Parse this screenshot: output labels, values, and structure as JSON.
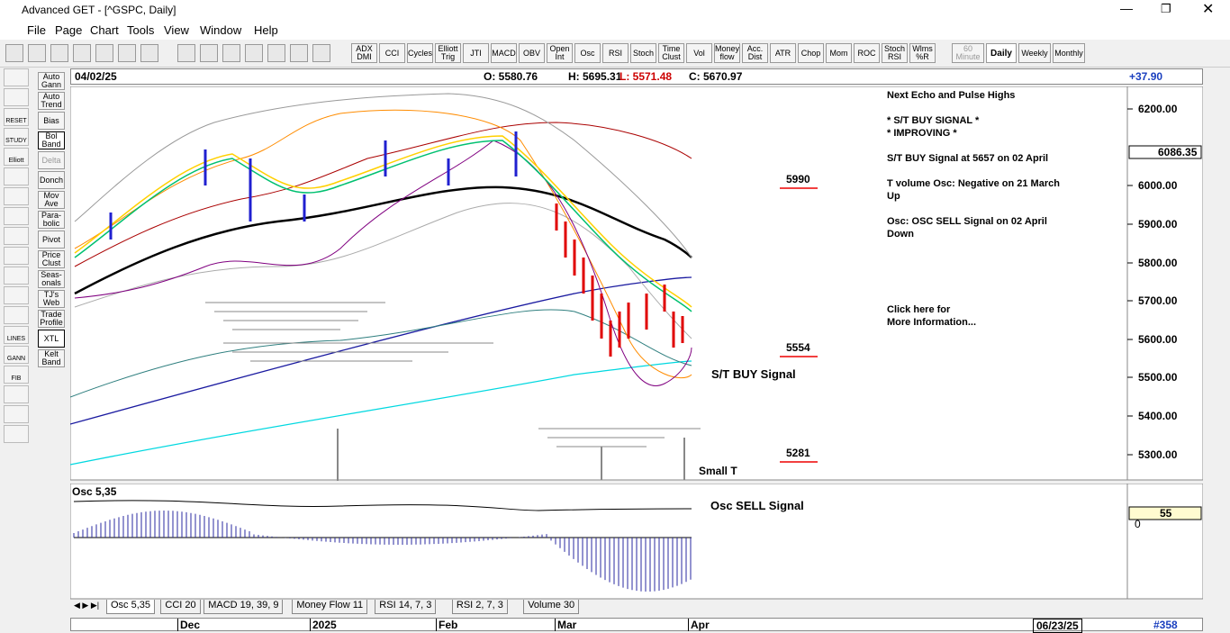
{
  "window": {
    "title": "Advanced GET - [^GSPC, Daily]"
  },
  "menu": [
    "File",
    "Page",
    "Chart",
    "Tools",
    "View",
    "Window",
    "Help"
  ],
  "toolbar": [
    "ADX DMI",
    "CCI",
    "Cycles",
    "Elliott Trig",
    "JTI",
    "MACD",
    "OBV",
    "Open Int",
    "Osc",
    "RSI",
    "Stoch",
    "Time Clust",
    "Vol",
    "Money flow",
    "Acc. Dist",
    "ATR",
    "Chop",
    "Mom",
    "ROC",
    "Stoch RSI",
    "Wlms %R"
  ],
  "timeframes": [
    "60 Minute",
    "Daily",
    "Weekly",
    "Monthly"
  ],
  "side_buttons": [
    "Auto Gann",
    "Auto Trend",
    "Bias",
    "Bol Band",
    "Delta",
    "Donch",
    "Mov Ave",
    "Para-bolic",
    "Pivot",
    "Price Clust",
    "Seas-onals",
    "TJ's Web",
    "Trade Profile",
    "XTL",
    "Kelt Band"
  ],
  "left_icons": [
    "RESET",
    "STUDY",
    "Elliott",
    "LINES",
    "GANN",
    "FIB"
  ],
  "header": {
    "date": "04/02/25",
    "open": "O: 5580.76",
    "high": "H: 5695.31",
    "low": "L: 5571.48",
    "close": "C: 5670.97",
    "change": "+37.90"
  },
  "price_axis": {
    "ticks": [
      "6200.00",
      "6000.00",
      "5900.00",
      "5800.00",
      "5700.00",
      "5600.00",
      "5500.00",
      "5400.00",
      "5300.00"
    ],
    "current": "6086.35"
  },
  "levels": [
    "5990",
    "5554",
    "5281"
  ],
  "annotations": {
    "buy": "S/T BUY Signal",
    "small": "Small T"
  },
  "notes": [
    "Next Echo and Pulse Highs",
    "* S/T BUY SIGNAL *",
    "* IMPROVING *",
    "S/T BUY Signal at 5657 on 02 April",
    "T volume Osc: Negative on 21 March",
    "Up",
    "Osc: OSC SELL Signal on 02 April",
    "Down",
    "Click here for",
    "More Information..."
  ],
  "osc": {
    "label": "Osc 5,35",
    "signal": "Osc SELL Signal",
    "value": "55",
    "zero": "0"
  },
  "tabs": [
    "Osc 5,35",
    "CCI 20",
    "MACD 19, 39, 9",
    "Money Flow 11",
    "RSI 14, 7, 3",
    "RSI 2, 7, 3",
    "Volume 30"
  ],
  "dates": [
    "Dec",
    "2025",
    "Feb",
    "Mar",
    "Apr"
  ],
  "footer": {
    "date": "06/23/25",
    "count": "#358"
  }
}
